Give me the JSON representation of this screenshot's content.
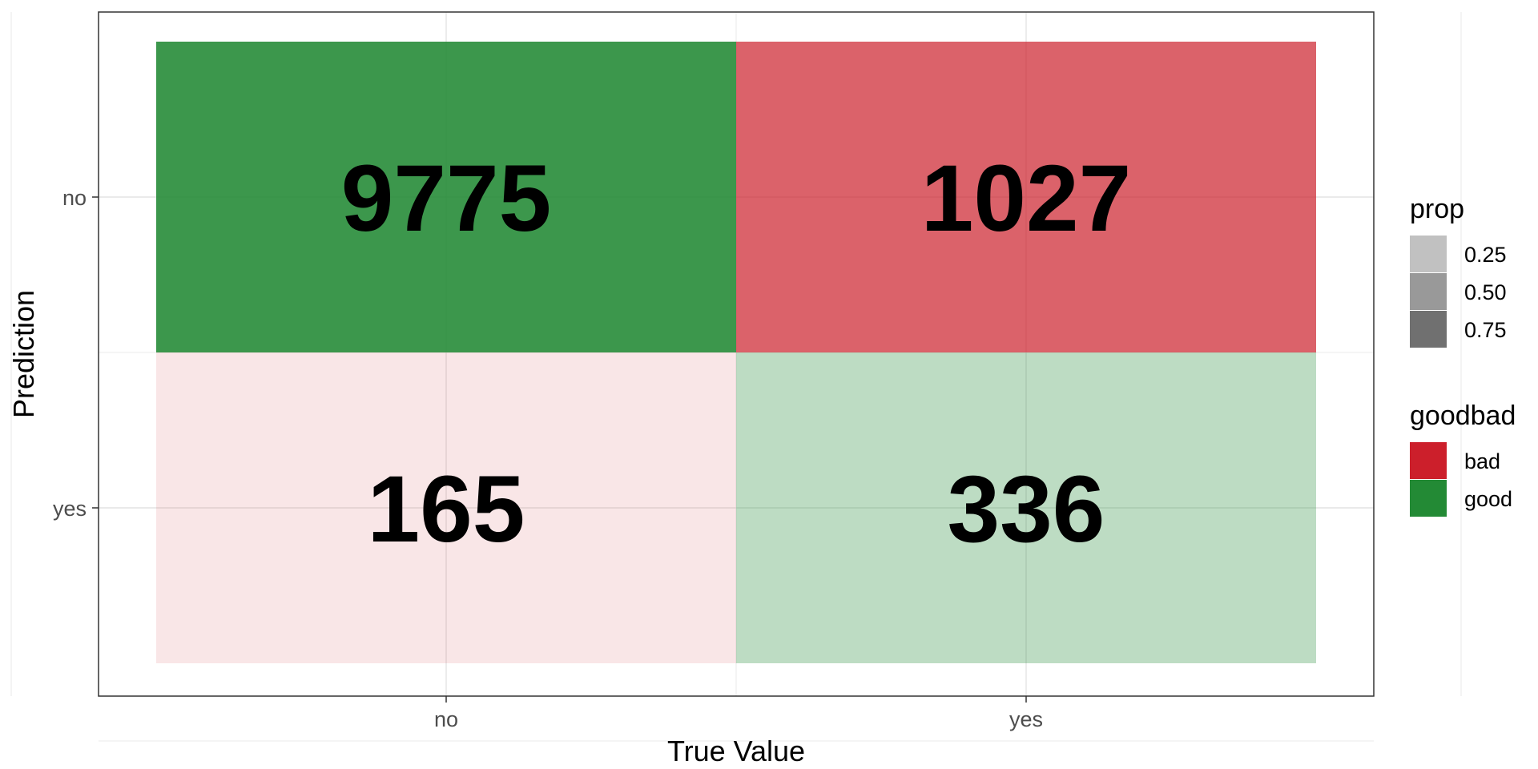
{
  "chart_data": {
    "type": "heatmap",
    "title": "",
    "xlabel": "True Value",
    "ylabel": "Prediction",
    "x_categories": [
      "no",
      "yes"
    ],
    "y_categories": [
      "no",
      "yes"
    ],
    "grid": true,
    "legend_position": "right",
    "cells": [
      {
        "x": "no",
        "y": "no",
        "value": 9775,
        "goodbad": "good",
        "prop": 0.983
      },
      {
        "x": "yes",
        "y": "no",
        "value": 1027,
        "goodbad": "bad",
        "prop": 0.753
      },
      {
        "x": "no",
        "y": "yes",
        "value": 165,
        "goodbad": "bad",
        "prop": 0.017
      },
      {
        "x": "yes",
        "y": "yes",
        "value": 336,
        "goodbad": "good",
        "prop": 0.247
      }
    ],
    "legends": {
      "prop": {
        "title": "prop",
        "entries": [
          {
            "label": "0.25",
            "value": 0.25
          },
          {
            "label": "0.50",
            "value": 0.5
          },
          {
            "label": "0.75",
            "value": 0.75
          }
        ]
      },
      "goodbad": {
        "title": "goodbad",
        "entries": [
          {
            "label": "bad",
            "color": "#cc1f2b"
          },
          {
            "label": "good",
            "color": "#238a35"
          }
        ]
      }
    }
  }
}
